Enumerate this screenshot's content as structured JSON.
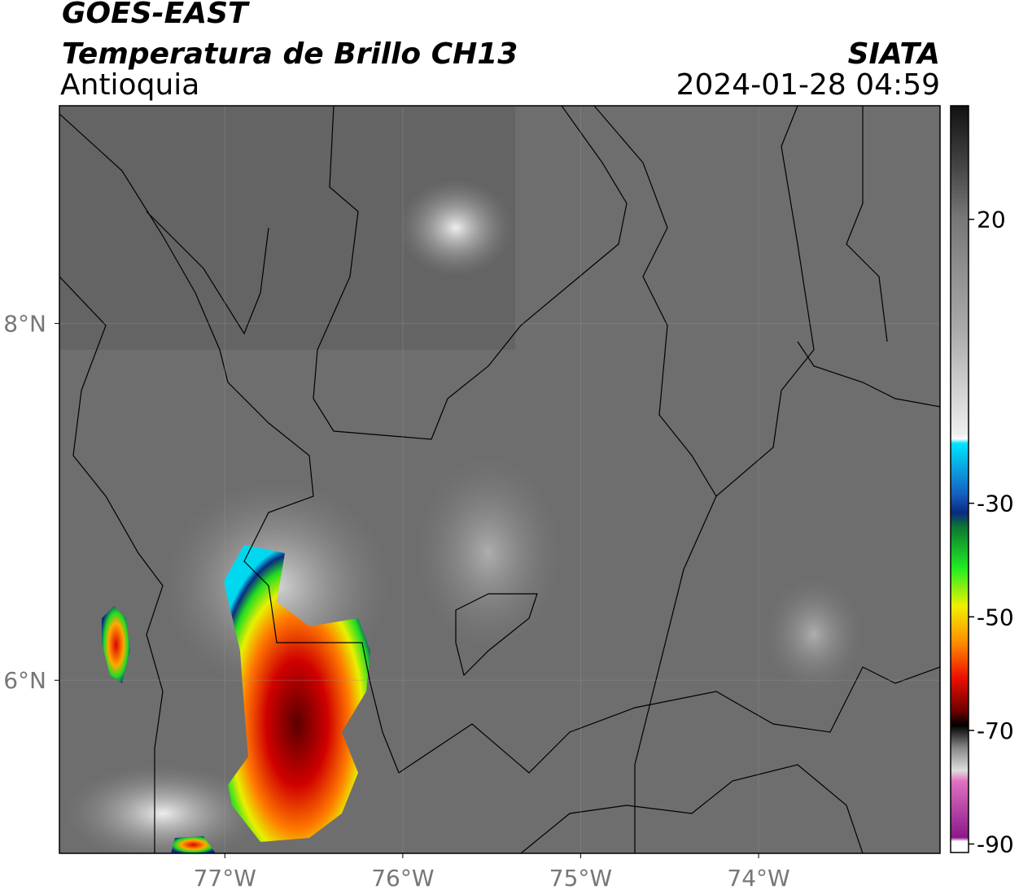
{
  "header": {
    "title": "GOES-EAST",
    "subtitle": "Temperatura de Brillo CH13",
    "region": "Antioquia",
    "source": "SIATA",
    "datetime": "2024-01-28 04:59"
  },
  "map": {
    "xlim": [
      -77.93,
      -72.98
    ],
    "ylim": [
      5.03,
      9.22
    ],
    "xticks": [
      {
        "value": -77,
        "label": "77°W"
      },
      {
        "value": -76,
        "label": "76°W"
      },
      {
        "value": -75,
        "label": "75°W"
      },
      {
        "value": -74,
        "label": "74°W"
      }
    ],
    "yticks": [
      {
        "value": 8,
        "label": "8°N"
      },
      {
        "value": 6,
        "label": "6°N"
      }
    ]
  },
  "colorbar": {
    "lim": [
      -91.5,
      40
    ],
    "ticks": [
      20,
      -30,
      -50,
      -70,
      -90
    ]
  }
}
